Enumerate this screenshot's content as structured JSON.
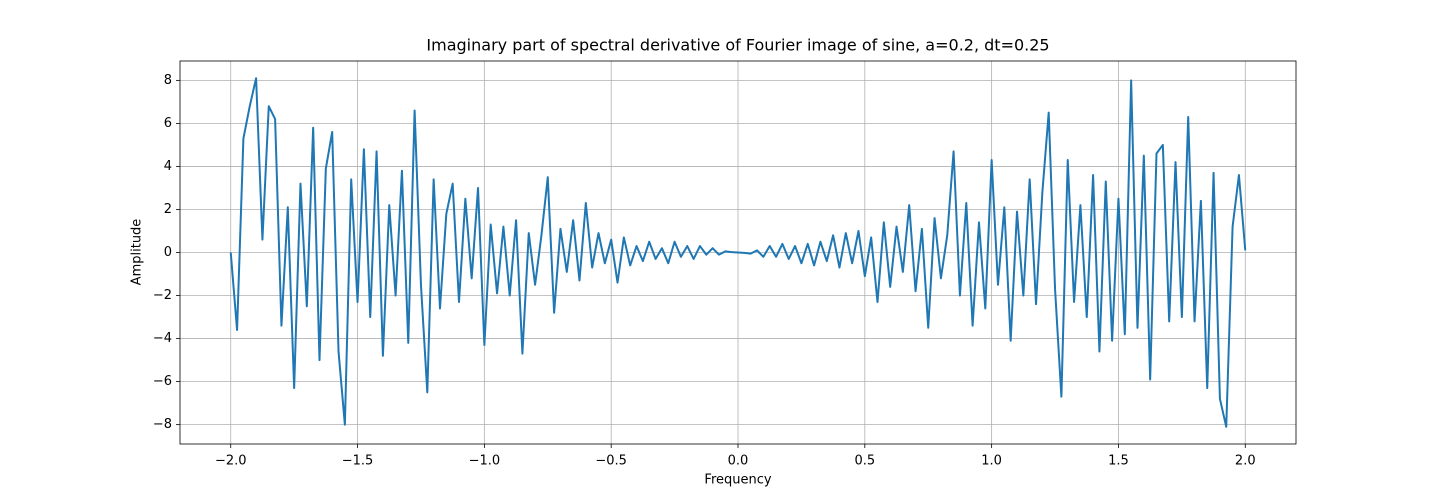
{
  "chart_data": {
    "type": "line",
    "title": "Imaginary part of spectral derivative of Fourier image of sine, a=0.2, dt=0.25",
    "xlabel": "Frequency",
    "ylabel": "Amplitude",
    "color": "#1f77b4",
    "grid": true,
    "xlim": [
      -2.2,
      2.2
    ],
    "ylim": [
      -8.9,
      8.9
    ],
    "xticks": [
      {
        "value": -2,
        "label": "−2.0"
      },
      {
        "value": -1.5,
        "label": "−1.5"
      },
      {
        "value": -1,
        "label": "−1.0"
      },
      {
        "value": -0.5,
        "label": "−0.5"
      },
      {
        "value": 0,
        "label": "0.0"
      },
      {
        "value": 0.5,
        "label": "0.5"
      },
      {
        "value": 1,
        "label": "1.0"
      },
      {
        "value": 1.5,
        "label": "1.5"
      },
      {
        "value": 2,
        "label": "2.0"
      }
    ],
    "yticks": [
      {
        "value": -8,
        "label": "−8"
      },
      {
        "value": -6,
        "label": "−6"
      },
      {
        "value": -4,
        "label": "−4"
      },
      {
        "value": -2,
        "label": "−2"
      },
      0,
      2,
      4,
      6,
      8
    ],
    "x": [
      -2,
      -1.975,
      -1.95,
      -1.925,
      -1.9,
      -1.875,
      -1.85,
      -1.825,
      -1.8,
      -1.775,
      -1.75,
      -1.725,
      -1.7,
      -1.675,
      -1.65,
      -1.625,
      -1.6,
      -1.575,
      -1.55,
      -1.525,
      -1.5,
      -1.475,
      -1.45,
      -1.425,
      -1.4,
      -1.375,
      -1.35,
      -1.325,
      -1.3,
      -1.275,
      -1.25,
      -1.225,
      -1.2,
      -1.175,
      -1.15,
      -1.125,
      -1.1,
      -1.075,
      -1.05,
      -1.025,
      -1,
      -0.975,
      -0.95,
      -0.925,
      -0.9,
      -0.875,
      -0.85,
      -0.825,
      -0.8,
      -0.775,
      -0.75,
      -0.725,
      -0.7,
      -0.675,
      -0.65,
      -0.625,
      -0.6,
      -0.575,
      -0.55,
      -0.525,
      -0.5,
      -0.475,
      -0.45,
      -0.425,
      -0.4,
      -0.375,
      -0.35,
      -0.325,
      -0.3,
      -0.275,
      -0.25,
      -0.225,
      -0.2,
      -0.175,
      -0.15,
      -0.125,
      -0.1,
      -0.075,
      -0.05,
      -0.025,
      0,
      0.025,
      0.05,
      0.075,
      0.1,
      0.125,
      0.15,
      0.175,
      0.2,
      0.225,
      0.25,
      0.275,
      0.3,
      0.325,
      0.35,
      0.375,
      0.4,
      0.425,
      0.45,
      0.475,
      0.5,
      0.525,
      0.55,
      0.575,
      0.6,
      0.625,
      0.65,
      0.675,
      0.7,
      0.725,
      0.75,
      0.775,
      0.8,
      0.825,
      0.85,
      0.875,
      0.9,
      0.925,
      0.95,
      0.975,
      1,
      1.025,
      1.05,
      1.075,
      1.1,
      1.125,
      1.15,
      1.175,
      1.2,
      1.225,
      1.25,
      1.275,
      1.3,
      1.325,
      1.35,
      1.375,
      1.4,
      1.425,
      1.45,
      1.475,
      1.5,
      1.525,
      1.55,
      1.575,
      1.6,
      1.625,
      1.65,
      1.675,
      1.7,
      1.725,
      1.75,
      1.775,
      1.8,
      1.825,
      1.85,
      1.875,
      1.9,
      1.925,
      1.95,
      1.975,
      2
    ],
    "values": [
      0,
      -3.6,
      5.3,
      6.8,
      8.1,
      0.6,
      6.8,
      6.2,
      -3.4,
      2.1,
      -6.3,
      3.2,
      -2.5,
      5.8,
      -5.0,
      3.9,
      5.6,
      -4.6,
      -8.0,
      3.4,
      -2.3,
      4.8,
      -3.0,
      4.7,
      -4.8,
      2.2,
      -2.0,
      3.8,
      -4.2,
      6.6,
      -1.5,
      -6.5,
      3.4,
      -2.6,
      1.8,
      3.2,
      -2.3,
      2.5,
      -1.2,
      3.0,
      -4.3,
      1.3,
      -1.9,
      1.2,
      -2.0,
      1.5,
      -4.7,
      0.9,
      -1.5,
      0.8,
      3.5,
      -2.8,
      1.1,
      -0.9,
      1.5,
      -1.3,
      2.3,
      -0.7,
      0.9,
      -0.5,
      0.6,
      -1.4,
      0.7,
      -0.6,
      0.3,
      -0.4,
      0.5,
      -0.3,
      0.2,
      -0.5,
      0.5,
      -0.2,
      0.3,
      -0.3,
      0.3,
      -0.1,
      0.2,
      -0.1,
      0.05,
      0.02,
      0,
      -0.02,
      -0.05,
      0.1,
      -0.2,
      0.3,
      -0.2,
      0.4,
      -0.3,
      0.3,
      -0.5,
      0.4,
      -0.6,
      0.5,
      -0.4,
      0.8,
      -0.7,
      0.9,
      -0.5,
      1.0,
      -1.1,
      0.7,
      -2.3,
      1.4,
      -1.6,
      1.2,
      -0.9,
      2.2,
      -1.8,
      1.1,
      -3.5,
      1.6,
      -1.2,
      0.8,
      4.7,
      -2.0,
      2.3,
      -3.4,
      1.4,
      -2.6,
      4.3,
      -1.5,
      2.1,
      -4.1,
      1.9,
      -2.0,
      3.4,
      -2.4,
      2.8,
      6.5,
      -1.7,
      -6.7,
      4.3,
      -2.3,
      2.2,
      -3.0,
      3.6,
      -4.6,
      3.3,
      -4.1,
      2.5,
      -3.8,
      8.0,
      -3.5,
      4.5,
      -5.9,
      4.6,
      5.0,
      -3.2,
      4.2,
      -3.0,
      6.3,
      -3.2,
      2.4,
      -6.3,
      3.7,
      -6.8,
      -8.1,
      1.2,
      3.6,
      0.1
    ]
  }
}
